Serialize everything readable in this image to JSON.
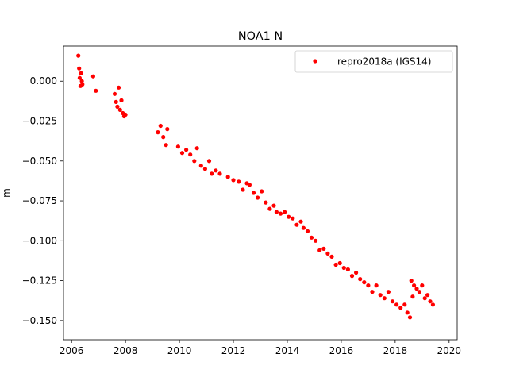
{
  "chart_data": {
    "type": "scatter",
    "title": "NOA1 N",
    "xlabel": "",
    "ylabel": "m",
    "xlim": [
      2005.7,
      2020.3
    ],
    "ylim": [
      -0.162,
      0.022
    ],
    "xticks": [
      2006,
      2008,
      2010,
      2012,
      2014,
      2016,
      2018,
      2020
    ],
    "yticks": [
      0.0,
      -0.025,
      -0.05,
      -0.075,
      -0.1,
      -0.125,
      -0.15
    ],
    "ytick_labels": [
      "0.000",
      "−0.025",
      "−0.050",
      "−0.075",
      "−0.100",
      "−0.125",
      "−0.150"
    ],
    "grid": false,
    "legend_position": "top-right",
    "series": [
      {
        "name": "repro2018a (IGS14)",
        "color": "#ff0000",
        "marker": "dot",
        "x": [
          2006.25,
          2006.28,
          2006.3,
          2006.33,
          2006.35,
          2006.38,
          2006.4,
          2006.8,
          2006.9,
          2007.6,
          2007.65,
          2007.7,
          2007.75,
          2007.8,
          2007.85,
          2007.9,
          2007.95,
          2008.0,
          2009.2,
          2009.3,
          2009.4,
          2009.5,
          2009.55,
          2009.95,
          2010.1,
          2010.25,
          2010.4,
          2010.55,
          2010.65,
          2010.8,
          2010.95,
          2011.1,
          2011.2,
          2011.35,
          2011.5,
          2011.8,
          2012.0,
          2012.2,
          2012.35,
          2012.5,
          2012.6,
          2012.75,
          2012.9,
          2013.05,
          2013.2,
          2013.35,
          2013.5,
          2013.6,
          2013.75,
          2013.9,
          2014.05,
          2014.2,
          2014.35,
          2014.5,
          2014.6,
          2014.75,
          2014.9,
          2015.05,
          2015.2,
          2015.35,
          2015.5,
          2015.65,
          2015.8,
          2015.95,
          2016.1,
          2016.25,
          2016.4,
          2016.55,
          2016.7,
          2016.85,
          2017.0,
          2017.15,
          2017.3,
          2017.45,
          2017.6,
          2017.75,
          2017.9,
          2018.05,
          2018.2,
          2018.35,
          2018.45,
          2018.55,
          2018.6,
          2018.65,
          2018.7,
          2018.8,
          2018.9,
          2019.0,
          2019.1,
          2019.2,
          2019.3,
          2019.4
        ],
        "y": [
          0.016,
          0.008,
          0.002,
          -0.003,
          0.005,
          0.0,
          -0.002,
          0.003,
          -0.006,
          -0.008,
          -0.013,
          -0.016,
          -0.004,
          -0.018,
          -0.012,
          -0.02,
          -0.022,
          -0.021,
          -0.032,
          -0.028,
          -0.035,
          -0.04,
          -0.03,
          -0.041,
          -0.045,
          -0.043,
          -0.046,
          -0.05,
          -0.042,
          -0.053,
          -0.055,
          -0.05,
          -0.058,
          -0.056,
          -0.058,
          -0.06,
          -0.062,
          -0.063,
          -0.068,
          -0.064,
          -0.065,
          -0.07,
          -0.073,
          -0.069,
          -0.076,
          -0.08,
          -0.078,
          -0.082,
          -0.083,
          -0.082,
          -0.085,
          -0.086,
          -0.09,
          -0.088,
          -0.092,
          -0.094,
          -0.098,
          -0.1,
          -0.106,
          -0.105,
          -0.108,
          -0.11,
          -0.115,
          -0.114,
          -0.117,
          -0.118,
          -0.122,
          -0.12,
          -0.124,
          -0.126,
          -0.128,
          -0.132,
          -0.128,
          -0.134,
          -0.136,
          -0.132,
          -0.138,
          -0.14,
          -0.142,
          -0.14,
          -0.145,
          -0.148,
          -0.125,
          -0.135,
          -0.128,
          -0.13,
          -0.132,
          -0.128,
          -0.136,
          -0.134,
          -0.138,
          -0.14
        ]
      }
    ]
  }
}
